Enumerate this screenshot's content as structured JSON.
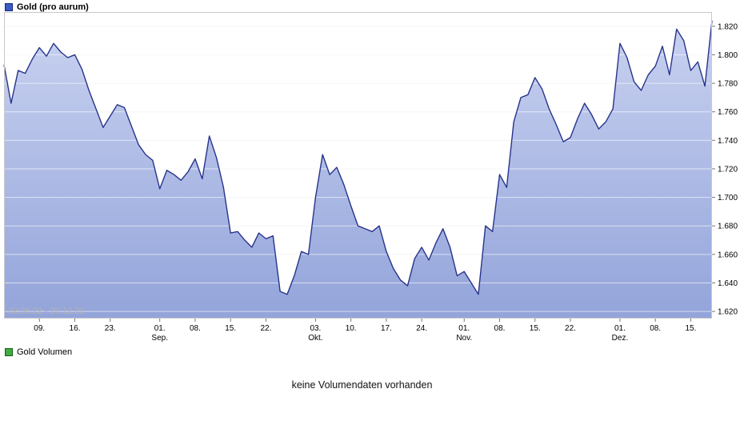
{
  "price_panel": {
    "legend": {
      "label": "Gold (pro aurum)",
      "marker_color": "#3a5bc7",
      "marker_border": "#14267a"
    },
    "watermark": "02.08.22 - 20.12.22"
  },
  "volume_panel": {
    "legend": {
      "label": "Gold Volumen",
      "marker_color": "#44aa44",
      "marker_border": "#106310"
    },
    "message": "keine Volumendaten vorhanden"
  },
  "chart_data": {
    "type": "area",
    "title": "Gold (pro aurum)",
    "date_range": "02.08.22 - 20.12.22",
    "grid": true,
    "legend_position": "top-left",
    "line_color": "#27348b",
    "fill_top": "#c9d2f0",
    "fill_bottom": "#93a4da",
    "ylim": [
      1615,
      1830
    ],
    "y_ticks": [
      {
        "v": 1620,
        "label": "1.620"
      },
      {
        "v": 1640,
        "label": "1.640"
      },
      {
        "v": 1660,
        "label": "1.660"
      },
      {
        "v": 1680,
        "label": "1.680"
      },
      {
        "v": 1700,
        "label": "1.700"
      },
      {
        "v": 1720,
        "label": "1.720"
      },
      {
        "v": 1740,
        "label": "1.740"
      },
      {
        "v": 1760,
        "label": "1.760"
      },
      {
        "v": 1780,
        "label": "1.780"
      },
      {
        "v": 1800,
        "label": "1.800"
      },
      {
        "v": 1820,
        "label": "1.820"
      }
    ],
    "x_ticks": [
      {
        "index": 5,
        "label": "09."
      },
      {
        "index": 10,
        "label": "16."
      },
      {
        "index": 15,
        "label": "23."
      },
      {
        "index": 22,
        "label": "01.",
        "month": "Sep."
      },
      {
        "index": 27,
        "label": "08."
      },
      {
        "index": 32,
        "label": "15."
      },
      {
        "index": 37,
        "label": "22."
      },
      {
        "index": 44,
        "label": "03.",
        "month": "Okt."
      },
      {
        "index": 49,
        "label": "10."
      },
      {
        "index": 54,
        "label": "17."
      },
      {
        "index": 59,
        "label": "24."
      },
      {
        "index": 65,
        "label": "01.",
        "month": "Nov."
      },
      {
        "index": 70,
        "label": "08."
      },
      {
        "index": 75,
        "label": "15."
      },
      {
        "index": 80,
        "label": "22."
      },
      {
        "index": 87,
        "label": "01.",
        "month": "Dez."
      },
      {
        "index": 92,
        "label": "08."
      },
      {
        "index": 97,
        "label": "15."
      }
    ],
    "values": [
      1793,
      1766,
      1789,
      1787,
      1797,
      1805,
      1799,
      1808,
      1802,
      1798,
      1800,
      1790,
      1775,
      1762,
      1749,
      1757,
      1765,
      1763,
      1750,
      1737,
      1730,
      1726,
      1706,
      1719,
      1716,
      1712,
      1718,
      1727,
      1713,
      1743,
      1728,
      1707,
      1675,
      1676,
      1670,
      1665,
      1675,
      1671,
      1673,
      1634,
      1632,
      1645,
      1662,
      1660,
      1700,
      1730,
      1716,
      1721,
      1709,
      1694,
      1680,
      1678,
      1676,
      1680,
      1662,
      1650,
      1642,
      1638,
      1657,
      1665,
      1656,
      1668,
      1678,
      1665,
      1645,
      1648,
      1640,
      1632,
      1680,
      1676,
      1716,
      1707,
      1753,
      1770,
      1772,
      1784,
      1776,
      1762,
      1751,
      1739,
      1742,
      1755,
      1766,
      1758,
      1748,
      1753,
      1762,
      1808,
      1798,
      1781,
      1775,
      1786,
      1792,
      1806,
      1786,
      1818,
      1810,
      1789,
      1795,
      1778,
      1824
    ]
  }
}
